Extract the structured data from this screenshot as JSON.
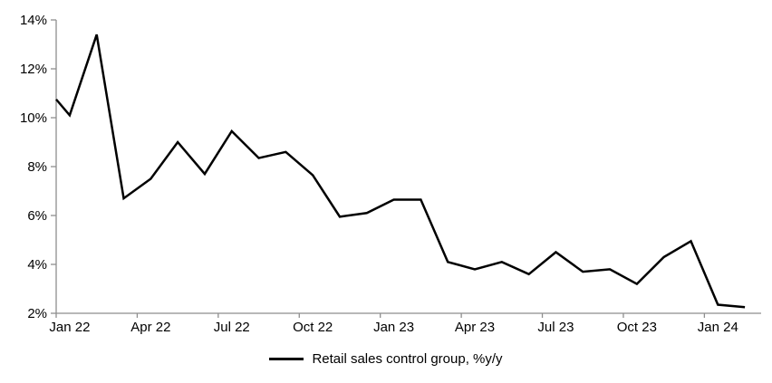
{
  "chart_data": {
    "type": "line",
    "legend": "Retail sales control group, %y/y",
    "legend_position": "bottom",
    "grid": false,
    "categories": [
      "Jan 22",
      "Feb 22",
      "Mar 22",
      "Apr 22",
      "May 22",
      "Jun 22",
      "Jul 22",
      "Aug 22",
      "Sep 22",
      "Oct 22",
      "Nov 22",
      "Dec 22",
      "Jan 23",
      "Feb 23",
      "Mar 23",
      "Apr 23",
      "May 23",
      "Jun 23",
      "Jul 23",
      "Aug 23",
      "Sep 23",
      "Oct 23",
      "Nov 23",
      "Dec 23",
      "Jan 24",
      "Feb 24"
    ],
    "values": [
      10.1,
      13.4,
      6.7,
      7.5,
      9.0,
      7.7,
      9.45,
      8.35,
      8.6,
      7.65,
      5.95,
      6.1,
      6.65,
      6.65,
      4.1,
      3.8,
      4.1,
      3.6,
      4.5,
      3.7,
      3.8,
      3.2,
      4.3,
      4.95,
      2.35,
      2.25
    ],
    "clipped_start_value": 10.75,
    "x_tick_labels": [
      "Jan 22",
      "Apr 22",
      "Jul 22",
      "Oct 22",
      "Jan 23",
      "Apr 23",
      "Jul 23",
      "Oct 23",
      "Jan 24"
    ],
    "y_tick_labels": [
      "2%",
      "4%",
      "6%",
      "8%",
      "10%",
      "12%",
      "14%"
    ],
    "ylim": [
      2,
      14
    ],
    "y_tick_step": 2,
    "colors": {
      "line": "#000000",
      "axis": "#8e8e8e",
      "text": "#000000"
    }
  }
}
